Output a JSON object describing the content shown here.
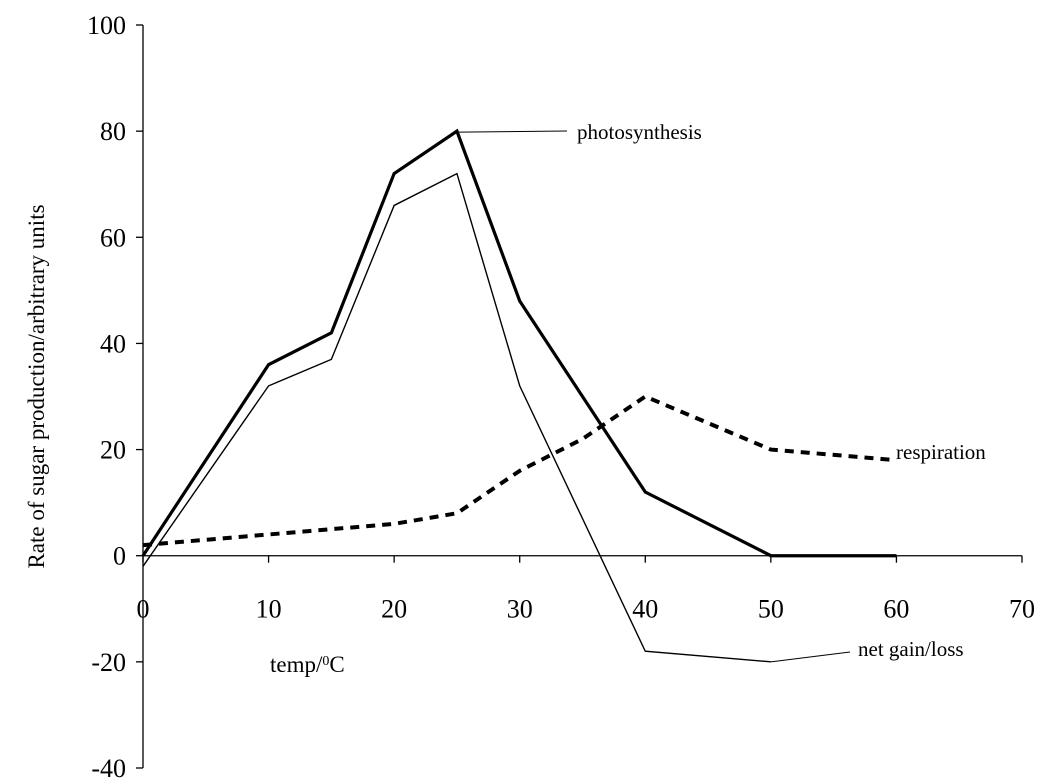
{
  "chart_data": {
    "type": "line",
    "title": "",
    "xlabel": "temp/⁰C",
    "ylabel": "Rate of sugar production/arbitrary units",
    "xlim": [
      0,
      70
    ],
    "ylim": [
      -40,
      100
    ],
    "x_ticks": [
      0,
      10,
      20,
      30,
      40,
      50,
      60,
      70
    ],
    "y_ticks": [
      -40,
      -20,
      0,
      20,
      40,
      60,
      80,
      100
    ],
    "grid": false,
    "legend": "none",
    "series": [
      {
        "name": "photosynthesis",
        "style": "thick-solid",
        "color": "#000000",
        "x": [
          0,
          10,
          15,
          20,
          25,
          30,
          40,
          50,
          60
        ],
        "y": [
          0,
          36,
          42,
          72,
          80,
          48,
          12,
          0,
          0
        ]
      },
      {
        "name": "net gain/loss",
        "style": "thin-solid",
        "color": "#000000",
        "x": [
          0,
          10,
          15,
          20,
          25,
          30,
          40,
          50
        ],
        "y": [
          -2,
          32,
          37,
          66,
          72,
          32,
          -18,
          -20
        ]
      },
      {
        "name": "respiration",
        "style": "dashed",
        "color": "#000000",
        "x": [
          0,
          10,
          15,
          20,
          25,
          30,
          35,
          40,
          50,
          60
        ],
        "y": [
          2,
          4,
          5,
          6,
          8,
          16,
          22,
          30,
          20,
          18
        ]
      }
    ],
    "annotations": [
      {
        "text": "photosynthesis",
        "series": "photosynthesis"
      },
      {
        "text": "respiration",
        "series": "respiration"
      },
      {
        "text": "net gain/loss",
        "series": "net gain/loss"
      }
    ]
  }
}
